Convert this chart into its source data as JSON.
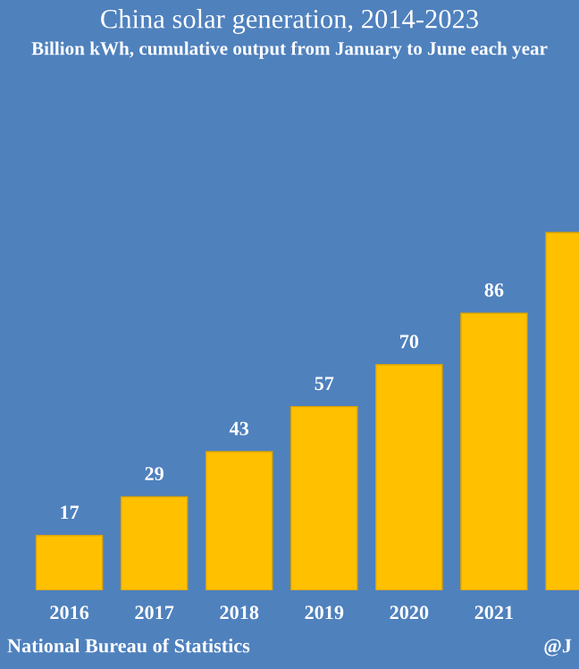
{
  "chart_data": {
    "type": "bar",
    "title": "China solar generation, 2014-2023",
    "subtitle": "Billion kWh, cumulative output from January to June each year",
    "categories": [
      "2016",
      "2017",
      "2018",
      "2019",
      "2020",
      "2021",
      null
    ],
    "values": [
      17,
      29,
      43,
      57,
      70,
      86,
      111
    ],
    "value_labels": [
      "17",
      "29",
      "43",
      "57",
      "70",
      "86",
      null
    ],
    "color": "#ffc000",
    "annotations": [
      "National Bureau of Statistics",
      "@J"
    ],
    "grid": false,
    "legend": false
  }
}
